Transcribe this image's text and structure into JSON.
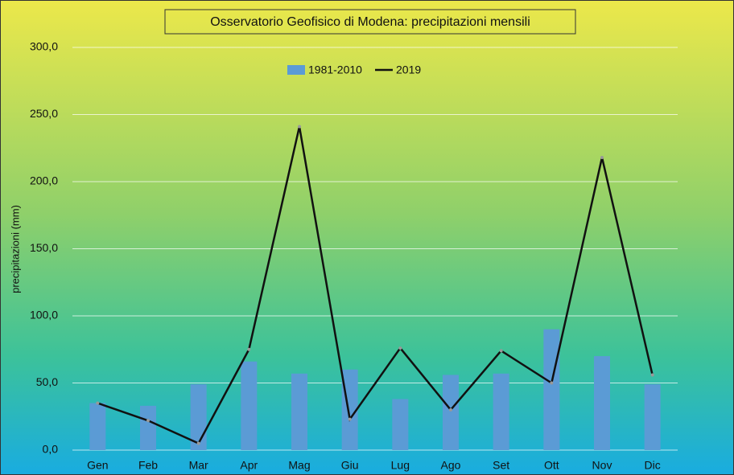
{
  "chart_data": {
    "type": "bar_line",
    "title": "Osservatorio Geofisico di Modena: precipitazioni mensili",
    "y_label": "precipitazioni  (mm)",
    "categories": [
      "Gen",
      "Feb",
      "Mar",
      "Apr",
      "Mag",
      "Giu",
      "Lug",
      "Ago",
      "Set",
      "Ott",
      "Nov",
      "Dic"
    ],
    "series": [
      {
        "name": "1981-2010",
        "type": "bar",
        "color": "#5b9bd5",
        "values": [
          35,
          33,
          49,
          66,
          57,
          60,
          38,
          56,
          57,
          90,
          70,
          49
        ]
      },
      {
        "name": "2019",
        "type": "line",
        "color": "#111111",
        "values": [
          35,
          22,
          5,
          75,
          241,
          23,
          76,
          30,
          74,
          50,
          218,
          56
        ]
      }
    ],
    "ylim": [
      0,
      300
    ],
    "yticks": [
      {
        "value": 0,
        "label": "0,0"
      },
      {
        "value": 50,
        "label": "50,0"
      },
      {
        "value": 100,
        "label": "100,0"
      },
      {
        "value": 150,
        "label": "150,0"
      },
      {
        "value": 200,
        "label": "200,0"
      },
      {
        "value": 250,
        "label": "250,0"
      },
      {
        "value": 300,
        "label": "300,0"
      }
    ],
    "grid": true
  }
}
